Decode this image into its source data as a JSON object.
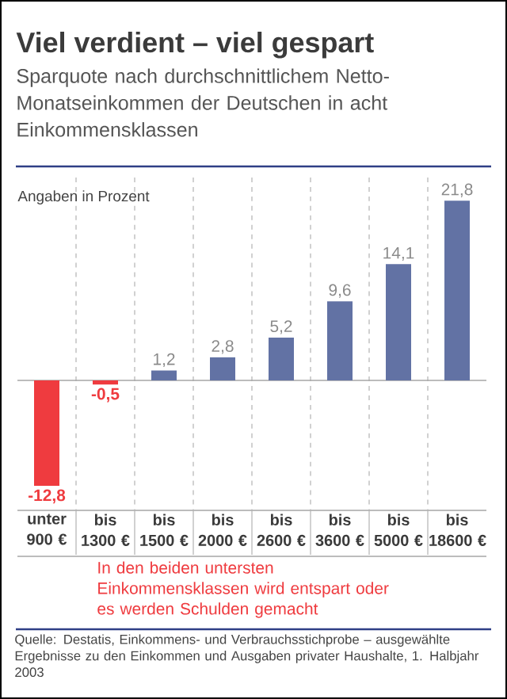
{
  "chart_data": {
    "type": "bar",
    "title": "Viel verdient – viel gespart",
    "subtitle": "Sparquote nach durchschnittlichem Netto-Monatseinkommen der Deutschen in acht Einkommensklassen",
    "annotations": [
      "Angaben in Prozent",
      "In den beiden untersten Einkommensklassen wird entspart oder es werden Schulden gemacht",
      "Quelle: Destatis, Einkommens- und Verbrauchsstichprobe – ausgewählte Ergebnisse zu den Einkommen und Ausgaben privater Haushalte, 1. Halbjahr 2003"
    ],
    "categories": [
      "unter 900 €",
      "bis 1300 €",
      "bis 1500 €",
      "bis 2000 €",
      "bis 2600 €",
      "bis 3600 €",
      "bis 5000 €",
      "bis 18600 €"
    ],
    "values": [
      -12.8,
      -0.5,
      1.2,
      2.8,
      5.2,
      9.6,
      14.1,
      21.8
    ],
    "colors": [
      "#ef3b3f",
      "#ef3b3f",
      "#6272a4",
      "#6272a4",
      "#6272a4",
      "#6272a4",
      "#6272a4",
      "#6272a4"
    ],
    "value_labels": [
      "-12,8",
      "-0,5",
      "1,2",
      "2,8",
      "5,2",
      "9,6",
      "14,1",
      "21,8"
    ]
  }
}
